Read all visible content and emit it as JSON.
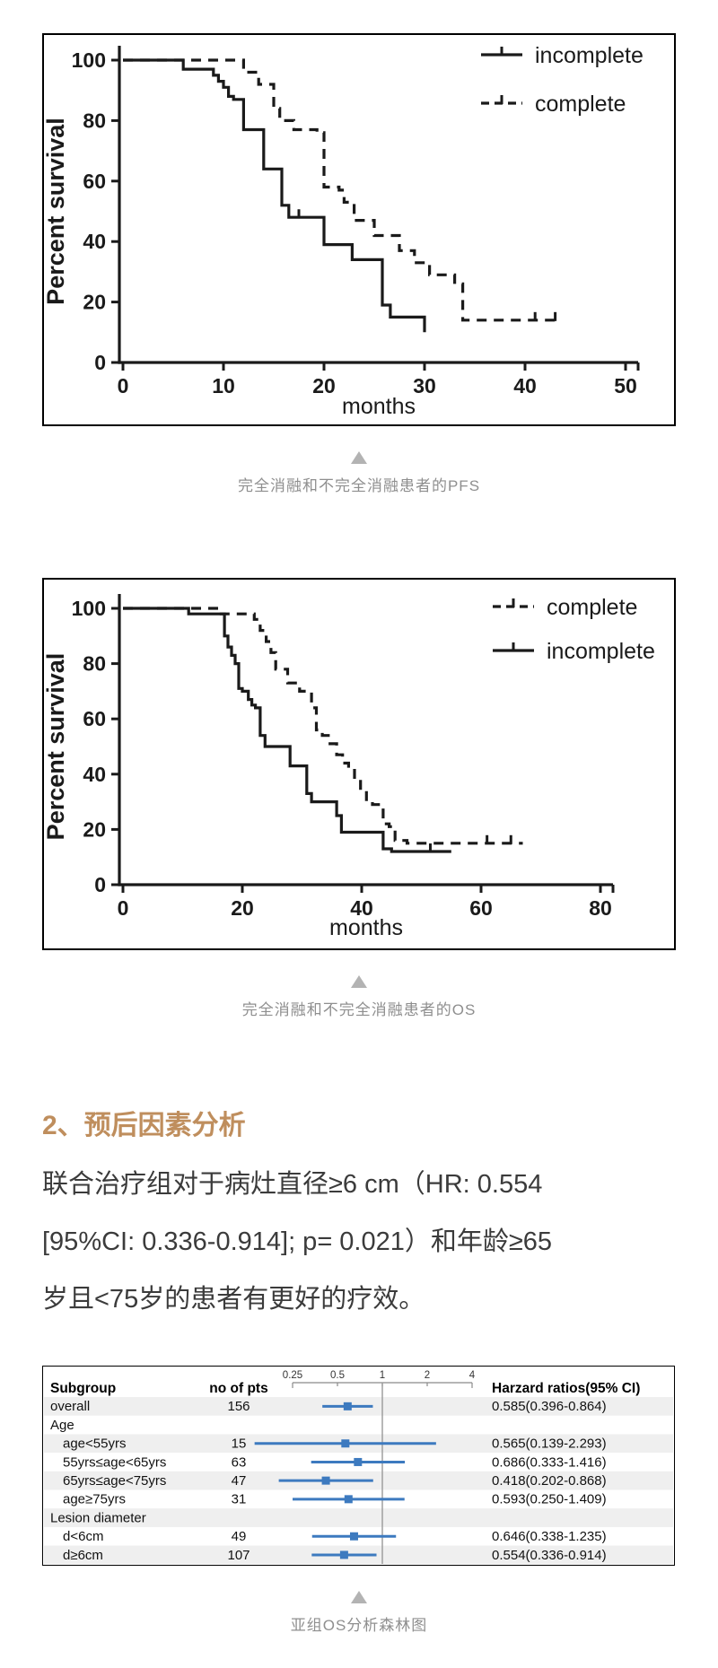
{
  "page": {
    "background": "#ffffff",
    "text_color": "#3b3b3b"
  },
  "captions": {
    "figure1": "完全消融和不完全消融患者的PFS",
    "figure2": "完全消融和不完全消融患者的OS",
    "figure3": "亚组OS分析森林图"
  },
  "section": {
    "heading": "2、预后因素分析",
    "heading_color": "#bf8e5d",
    "lines": [
      "联合治疗组对于病灶直径≥6  cm（HR:  0.554",
      "[95%CI: 0.336-0.914]; p= 0.021）和年龄≥65",
      "岁且<75岁的患者有更好的疗效。"
    ]
  },
  "chart_data": [
    {
      "id": "pfs",
      "type": "line",
      "subtype": "kaplan-meier-step",
      "title": "",
      "xlabel": "months",
      "ylabel": "Percent survival",
      "xlim": [
        0,
        50
      ],
      "xticks": [
        0,
        10,
        20,
        30,
        40,
        50
      ],
      "ylim": [
        0,
        100
      ],
      "yticks": [
        0,
        20,
        40,
        60,
        80,
        100
      ],
      "grid": false,
      "legend_position": "top-right",
      "legend_order": [
        "incomplete",
        "complete"
      ],
      "line_color": "#1a1a1a",
      "series": [
        {
          "name": "incomplete",
          "style": "solid",
          "steps": [
            [
              0,
              100
            ],
            [
              6,
              100
            ],
            [
              6,
              97
            ],
            [
              9,
              97
            ],
            [
              9,
              95
            ],
            [
              9.5,
              95
            ],
            [
              9.5,
              93
            ],
            [
              10,
              93
            ],
            [
              10,
              91
            ],
            [
              10.5,
              91
            ],
            [
              10.5,
              88
            ],
            [
              11,
              88
            ],
            [
              11,
              87
            ],
            [
              12,
              87
            ],
            [
              12,
              77
            ],
            [
              14,
              77
            ],
            [
              14,
              64
            ],
            [
              15.8,
              64
            ],
            [
              15.8,
              52
            ],
            [
              16.5,
              52
            ],
            [
              16.5,
              48
            ],
            [
              20,
              48
            ],
            [
              20,
              39
            ],
            [
              22.8,
              39
            ],
            [
              22.8,
              34
            ],
            [
              25.8,
              34
            ],
            [
              25.8,
              19
            ],
            [
              26.6,
              19
            ],
            [
              26.6,
              15
            ],
            [
              30,
              15
            ],
            [
              30,
              10
            ]
          ],
          "censor_marks": [
            [
              17.5,
              48
            ]
          ]
        },
        {
          "name": "complete",
          "style": "dashed",
          "steps": [
            [
              0,
              100
            ],
            [
              12,
              100
            ],
            [
              12,
              96
            ],
            [
              13.5,
              96
            ],
            [
              13.5,
              92
            ],
            [
              15,
              92
            ],
            [
              15,
              84
            ],
            [
              15.6,
              84
            ],
            [
              15.6,
              80
            ],
            [
              17,
              80
            ],
            [
              17,
              77
            ],
            [
              19.3,
              77
            ],
            [
              19.3,
              76
            ],
            [
              20,
              76
            ],
            [
              20,
              58
            ],
            [
              21.5,
              58
            ],
            [
              21.5,
              57
            ],
            [
              22,
              57
            ],
            [
              22,
              53
            ],
            [
              23,
              53
            ],
            [
              23,
              47
            ],
            [
              25,
              47
            ],
            [
              25,
              42
            ],
            [
              27.5,
              42
            ],
            [
              27.5,
              37
            ],
            [
              29,
              37
            ],
            [
              29,
              33
            ],
            [
              30.5,
              33
            ],
            [
              30.5,
              29
            ],
            [
              33,
              29
            ],
            [
              33,
              26
            ],
            [
              33.8,
              26
            ],
            [
              33.8,
              14
            ],
            [
              43,
              14
            ]
          ],
          "censor_marks": [
            [
              41,
              14
            ],
            [
              43,
              14
            ]
          ]
        }
      ]
    },
    {
      "id": "os",
      "type": "line",
      "subtype": "kaplan-meier-step",
      "title": "",
      "xlabel": "months",
      "ylabel": "Percent survival",
      "xlim": [
        0,
        80
      ],
      "xticks": [
        0,
        20,
        40,
        60,
        80
      ],
      "ylim": [
        0,
        100
      ],
      "yticks": [
        0,
        20,
        40,
        60,
        80,
        100
      ],
      "grid": false,
      "legend_position": "top-right",
      "legend_order": [
        "complete",
        "incomplete"
      ],
      "line_color": "#1a1a1a",
      "series": [
        {
          "name": "incomplete",
          "style": "solid",
          "steps": [
            [
              0,
              100
            ],
            [
              11,
              100
            ],
            [
              11,
              98
            ],
            [
              17,
              98
            ],
            [
              17,
              90
            ],
            [
              17.6,
              90
            ],
            [
              17.6,
              86
            ],
            [
              18.2,
              86
            ],
            [
              18.2,
              83
            ],
            [
              18.8,
              83
            ],
            [
              18.8,
              80
            ],
            [
              19.4,
              80
            ],
            [
              19.4,
              71
            ],
            [
              20,
              71
            ],
            [
              20,
              70
            ],
            [
              21,
              70
            ],
            [
              21,
              67
            ],
            [
              21.6,
              67
            ],
            [
              21.6,
              65
            ],
            [
              22.2,
              65
            ],
            [
              22.2,
              64
            ],
            [
              23,
              64
            ],
            [
              23,
              54
            ],
            [
              23.8,
              54
            ],
            [
              23.8,
              50
            ],
            [
              28,
              50
            ],
            [
              28,
              43
            ],
            [
              30.8,
              43
            ],
            [
              30.8,
              33
            ],
            [
              31.6,
              33
            ],
            [
              31.6,
              30
            ],
            [
              35.8,
              30
            ],
            [
              35.8,
              25
            ],
            [
              36.6,
              25
            ],
            [
              36.6,
              19
            ],
            [
              43.6,
              19
            ],
            [
              43.6,
              13
            ],
            [
              45,
              13
            ],
            [
              45,
              12
            ],
            [
              55,
              12
            ]
          ],
          "censor_marks": [
            [
              51.5,
              12
            ]
          ]
        },
        {
          "name": "complete",
          "style": "dashed",
          "steps": [
            [
              0,
              100
            ],
            [
              16,
              100
            ],
            [
              16,
              98
            ],
            [
              22,
              98
            ],
            [
              22,
              96
            ],
            [
              23,
              96
            ],
            [
              23,
              92
            ],
            [
              24,
              92
            ],
            [
              24,
              88
            ],
            [
              24.8,
              88
            ],
            [
              24.8,
              84
            ],
            [
              25.6,
              84
            ],
            [
              25.6,
              78
            ],
            [
              27.6,
              78
            ],
            [
              27.6,
              73
            ],
            [
              29.6,
              73
            ],
            [
              29.6,
              70
            ],
            [
              31.6,
              70
            ],
            [
              31.6,
              64
            ],
            [
              32.4,
              64
            ],
            [
              32.4,
              56
            ],
            [
              33.4,
              56
            ],
            [
              33.4,
              54
            ],
            [
              34.4,
              54
            ],
            [
              34.4,
              51
            ],
            [
              35.8,
              51
            ],
            [
              35.8,
              47
            ],
            [
              36.8,
              47
            ],
            [
              36.8,
              44
            ],
            [
              37.8,
              44
            ],
            [
              37.8,
              42
            ],
            [
              38.8,
              42
            ],
            [
              38.8,
              38
            ],
            [
              39.8,
              38
            ],
            [
              39.8,
              34
            ],
            [
              40.8,
              34
            ],
            [
              40.8,
              30
            ],
            [
              41.8,
              30
            ],
            [
              41.8,
              29
            ],
            [
              43.6,
              29
            ],
            [
              43.6,
              22
            ],
            [
              44.6,
              22
            ],
            [
              44.6,
              21
            ],
            [
              45.6,
              21
            ],
            [
              45.6,
              16
            ],
            [
              47.6,
              16
            ],
            [
              47.6,
              15
            ],
            [
              67,
              15
            ]
          ],
          "censor_marks": [
            [
              61,
              15
            ],
            [
              65,
              15
            ]
          ]
        }
      ]
    },
    {
      "id": "forest",
      "type": "table",
      "subtype": "forest-plot",
      "columns": {
        "subgroup": "Subgroup",
        "pts": "no of pts",
        "hr": "Harzard ratios(95% CI)"
      },
      "axis": {
        "scale": "log2",
        "ticks": [
          "0.25",
          "0.5",
          "1",
          "2",
          "4"
        ],
        "tick_values": [
          0.25,
          0.5,
          1,
          2,
          4
        ],
        "ref_value": 1
      },
      "colors": {
        "marker": "#3d7abf",
        "ci_line": "#3d7abf",
        "stripe": "#efefef",
        "ref_line": "#9a9a9a",
        "border": "#000000"
      },
      "rows": [
        {
          "label": "overall",
          "indent": false,
          "pts": "156",
          "hr": 0.585,
          "ci_low": 0.396,
          "ci_high": 0.864,
          "hr_text": "0.585(0.396-0.864)"
        },
        {
          "label": "Age",
          "header": true
        },
        {
          "label": "age<55yrs",
          "indent": true,
          "pts": "15",
          "hr": 0.565,
          "ci_low": 0.139,
          "ci_high": 2.293,
          "hr_text": "0.565(0.139-2.293)"
        },
        {
          "label": "55yrs≤age<65yrs",
          "indent": true,
          "pts": "63",
          "hr": 0.686,
          "ci_low": 0.333,
          "ci_high": 1.416,
          "hr_text": "0.686(0.333-1.416)"
        },
        {
          "label": "65yrs≤age<75yrs",
          "indent": true,
          "pts": "47",
          "hr": 0.418,
          "ci_low": 0.202,
          "ci_high": 0.868,
          "hr_text": "0.418(0.202-0.868)"
        },
        {
          "label": "age≥75yrs",
          "indent": true,
          "pts": "31",
          "hr": 0.593,
          "ci_low": 0.25,
          "ci_high": 1.409,
          "hr_text": "0.593(0.250-1.409)"
        },
        {
          "label": "Lesion diameter",
          "header": true
        },
        {
          "label": "d<6cm",
          "indent": true,
          "pts": "49",
          "hr": 0.646,
          "ci_low": 0.338,
          "ci_high": 1.235,
          "hr_text": "0.646(0.338-1.235)"
        },
        {
          "label": "d≥6cm",
          "indent": true,
          "pts": "107",
          "hr": 0.554,
          "ci_low": 0.336,
          "ci_high": 0.914,
          "hr_text": "0.554(0.336-0.914)"
        }
      ]
    }
  ]
}
